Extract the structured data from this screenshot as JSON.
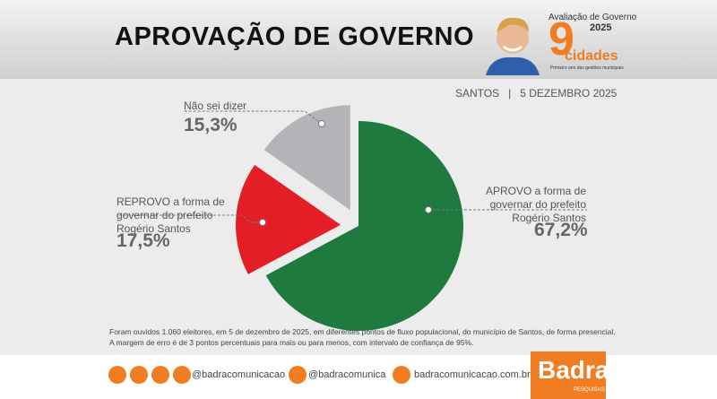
{
  "header": {
    "title": "APROVAÇÃO DE GOVERNO",
    "logo_top": "Avaliação de Governo",
    "logo_year": "2025",
    "logo_number": "9",
    "logo_word": "cidades",
    "logo_caption": "Primeiro ano das gestões municipais"
  },
  "subtitle": {
    "city": "SANTOS",
    "date": "5 DEZEMBRO 2025"
  },
  "chart_data": {
    "type": "pie",
    "categories": [
      "APROVO a forma de governar do prefeito Rogério Santos",
      "REPROVO a forma de governar do prefeito Rogério Santos",
      "Não sei dizer"
    ],
    "values": [
      67.2,
      17.5,
      15.3
    ],
    "value_labels": [
      "67,2%",
      "17,5%",
      "15,3%"
    ],
    "colors": [
      "#1e7a3e",
      "#e41e26",
      "#b3b4b8"
    ],
    "exploded": [
      false,
      true,
      true
    ]
  },
  "note": [
    "Foram ouvidos 1.060 eleitores, em 5 de dezembro de 2025, em diferentes pontos de fluxo populacional, do município de Santos, de forma presencial.",
    "A margem de erro é de 3 pontos percentuais para mais ou para menos, com intervalo de confiança de 95%."
  ],
  "footer": {
    "social": "@badracomunicacao",
    "x": "@badracomunica",
    "site": "badracomunicacao.com.br",
    "brand": "Badra",
    "brand_sub": "PESQUISAS"
  }
}
